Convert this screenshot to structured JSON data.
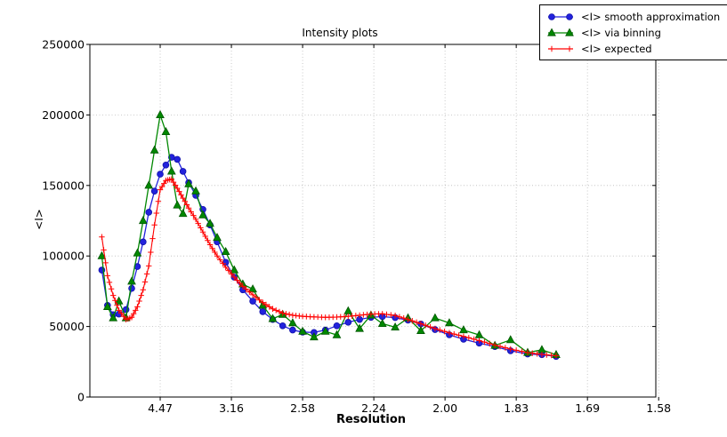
{
  "figure": {
    "title": "Intensity plots"
  },
  "chart_data": {
    "type": "line",
    "title": "Intensity plots",
    "xlabel": "Resolution",
    "ylabel": "<I>",
    "x_axis_note": "linear in 1/d^2, tick labels show resolution d in Angstrom",
    "xlim": [
      0.000625,
      0.398
    ],
    "ylim": [
      0,
      250000
    ],
    "grid": true,
    "legend_position": "top-right",
    "x_ticks": [
      {
        "pos": 0.05,
        "label": "4.47"
      },
      {
        "pos": 0.1,
        "label": "3.16"
      },
      {
        "pos": 0.15,
        "label": "2.58"
      },
      {
        "pos": 0.2,
        "label": "2.24"
      },
      {
        "pos": 0.25,
        "label": "2.00"
      },
      {
        "pos": 0.3,
        "label": "1.83"
      },
      {
        "pos": 0.35,
        "label": "1.69"
      },
      {
        "pos": 0.4,
        "label": "1.58"
      }
    ],
    "y_ticks": [
      {
        "pos": 0,
        "label": "0"
      },
      {
        "pos": 50000,
        "label": "50000"
      },
      {
        "pos": 100000,
        "label": "100000"
      },
      {
        "pos": 150000,
        "label": "150000"
      },
      {
        "pos": 200000,
        "label": "200000"
      },
      {
        "pos": 250000,
        "label": "250000"
      }
    ],
    "x": [
      0.009,
      0.013,
      0.017,
      0.021,
      0.026,
      0.03,
      0.034,
      0.038,
      0.042,
      0.046,
      0.05,
      0.054,
      0.058,
      0.062,
      0.066,
      0.07,
      0.075,
      0.08,
      0.085,
      0.09,
      0.096,
      0.102,
      0.108,
      0.115,
      0.122,
      0.129,
      0.136,
      0.143,
      0.15,
      0.158,
      0.166,
      0.174,
      0.182,
      0.19,
      0.198,
      0.206,
      0.215,
      0.224,
      0.233,
      0.243,
      0.253,
      0.263,
      0.274,
      0.285,
      0.296,
      0.308,
      0.318,
      0.328
    ],
    "series": [
      {
        "name": "<I> smooth approximation",
        "color": "#2222dd",
        "edge_color": "#1111aa",
        "marker": "circle",
        "values": [
          90000,
          65000,
          58400,
          58800,
          62000,
          77000,
          92500,
          110000,
          131000,
          146000,
          158000,
          164500,
          170000,
          168500,
          160000,
          152000,
          143000,
          133000,
          122000,
          110000,
          95500,
          85000,
          76000,
          68000,
          60500,
          55000,
          50500,
          47500,
          46000,
          45800,
          47500,
          50500,
          53000,
          55000,
          56500,
          57000,
          56300,
          54500,
          51800,
          47800,
          44100,
          41000,
          38200,
          35800,
          32800,
          30500,
          30000,
          28800
        ]
      },
      {
        "name": "<I> via binning",
        "color": "#008800",
        "edge_color": "#005500",
        "marker": "triangle",
        "values": [
          100000,
          64000,
          56000,
          68000,
          56000,
          82000,
          102000,
          125000,
          150000,
          175000,
          200000,
          188000,
          160000,
          136000,
          130000,
          151000,
          146000,
          129000,
          123000,
          113000,
          103000,
          90000,
          80000,
          76500,
          65000,
          55500,
          58500,
          52500,
          46500,
          42500,
          46500,
          44000,
          61000,
          48500,
          58000,
          52000,
          49500,
          56000,
          47000,
          56000,
          52500,
          47500,
          44000,
          36500,
          40500,
          31500,
          33500,
          30000
        ]
      },
      {
        "name": "<I> expected",
        "color": "#ff0000",
        "edge_color": "#dd0000",
        "marker": "plus",
        "values": [
          113500,
          86000,
          72000,
          61500,
          55000,
          56500,
          64000,
          76000,
          93000,
          122000,
          147000,
          153500,
          154500,
          148000,
          141000,
          134000,
          126000,
          117000,
          108000,
          100000,
          92000,
          85000,
          78500,
          72500,
          67000,
          62500,
          59500,
          58000,
          57200,
          56800,
          56500,
          56700,
          57200,
          58000,
          58800,
          59000,
          57800,
          55000,
          52000,
          48500,
          45500,
          43000,
          40000,
          36800,
          34000,
          31500,
          30200,
          29300
        ]
      }
    ]
  }
}
